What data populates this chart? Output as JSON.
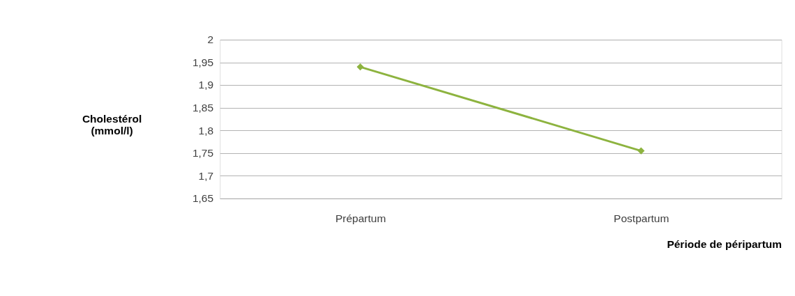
{
  "chart_data": {
    "type": "line",
    "ylabel": "Cholestérol (mmol/l)",
    "xlabel": "Période de péripartum",
    "categories": [
      "Prépartum",
      "Postpartum"
    ],
    "series": [
      {
        "color": "#8db33f",
        "values": [
          1.94,
          1.755
        ]
      }
    ],
    "ylim": [
      1.65,
      2
    ],
    "yticks": [
      {
        "value": 1.65,
        "label": "1,65"
      },
      {
        "value": 1.7,
        "label": "1,7"
      },
      {
        "value": 1.75,
        "label": "1,75"
      },
      {
        "value": 1.8,
        "label": "1,8"
      },
      {
        "value": 1.85,
        "label": "1,85"
      },
      {
        "value": 1.9,
        "label": "1,9"
      },
      {
        "value": 1.95,
        "label": "1,95"
      },
      2
    ],
    "grid": "y",
    "marker": "diamond",
    "line_style": "solid"
  }
}
